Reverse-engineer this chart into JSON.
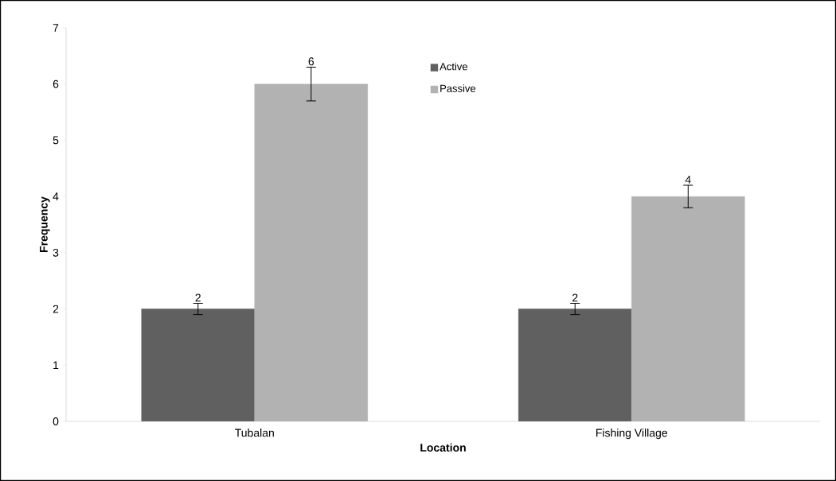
{
  "chart_data": {
    "type": "bar",
    "xlabel": "Location",
    "ylabel": "Frequency",
    "categories": [
      "Tubalan",
      "Fishing Village"
    ],
    "series": [
      {
        "name": "Active",
        "color": "#606060",
        "values": [
          2,
          2
        ],
        "errors": [
          0.1,
          0.1
        ]
      },
      {
        "name": "Passive",
        "color": "#b2b2b2",
        "values": [
          6,
          4
        ],
        "errors": [
          0.3,
          0.2
        ]
      }
    ],
    "ylim": [
      0,
      7
    ],
    "yticks": [
      0,
      1,
      2,
      3,
      4,
      5,
      6,
      7
    ],
    "data_labels": true,
    "legend": "top",
    "grid": false
  }
}
